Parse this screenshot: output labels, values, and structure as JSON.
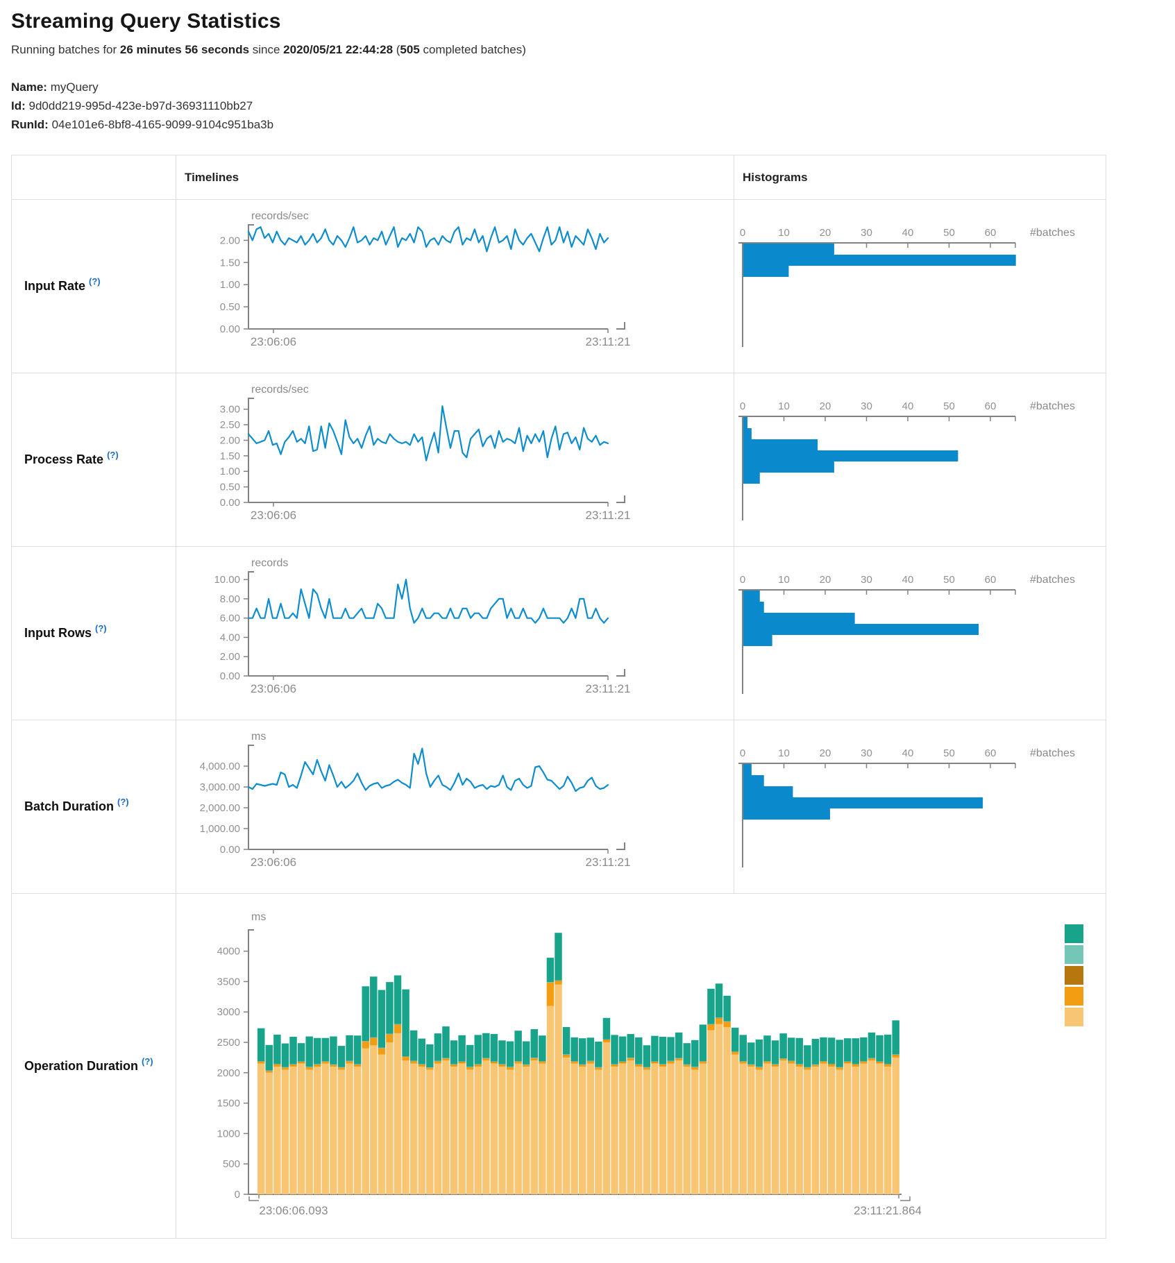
{
  "page": {
    "title": "Streaming Query Statistics",
    "subtitle_prefix": "Running batches for ",
    "duration": "26 minutes 56 seconds",
    "since_text": " since ",
    "start_time": "2020/05/21 22:44:28",
    "paren_open": " (",
    "completed_batches": "505",
    "batches_suffix": " completed batches)",
    "name_label": "Name:",
    "name": "myQuery",
    "id_label": "Id:",
    "id": "9d0dd219-995d-423e-b97d-36931110bb27",
    "runid_label": "RunId:",
    "runid": "04e101e6-8bf8-4165-9099-9104c951ba3b"
  },
  "table": {
    "timelines_header": "Timelines",
    "histograms_header": "Histograms"
  },
  "colors": {
    "line": "#0d8cce",
    "histogram_bar": "#0a89cc",
    "help": "#1b6ec2"
  },
  "rows": [
    {
      "label": "Input Rate",
      "help": "(?)"
    },
    {
      "label": "Process Rate",
      "help": "(?)"
    },
    {
      "label": "Input Rows",
      "help": "(?)"
    },
    {
      "label": "Batch Duration",
      "help": "(?)"
    },
    {
      "label": "Operation Duration",
      "help": "(?)"
    }
  ],
  "chart_data": [
    {
      "type": "line",
      "title": "Input Rate timeline",
      "unit": "records/sec",
      "x_start_label": "23:06:06",
      "x_end_label": "23:11:21",
      "ylim": [
        0,
        2.35
      ],
      "yticks": [
        0,
        0.5,
        1,
        1.5,
        2
      ],
      "ytick_labels": [
        "0.00",
        "0.50",
        "1.00",
        "1.50",
        "2.00"
      ],
      "values": [
        2.2,
        2.0,
        2.25,
        2.3,
        2.05,
        2.15,
        1.95,
        2.2,
        2.0,
        1.9,
        2.05,
        2.0,
        1.95,
        2.1,
        1.9,
        2.0,
        2.15,
        1.95,
        2.05,
        2.25,
        2.0,
        1.9,
        2.1,
        2.0,
        1.85,
        2.05,
        2.3,
        1.95,
        2.0,
        2.1,
        1.9,
        2.05,
        2.0,
        2.2,
        1.9,
        2.1,
        2.3,
        1.85,
        2.05,
        2.0,
        2.15,
        1.95,
        2.3,
        2.2,
        1.85,
        2.0,
        2.05,
        1.9,
        2.1,
        2.0,
        1.95,
        2.2,
        2.3,
        1.9,
        2.05,
        2.0,
        2.25,
        1.95,
        2.1,
        1.75,
        2.05,
        2.3,
        1.95,
        2.0,
        2.1,
        1.8,
        2.25,
        2.0,
        1.9,
        2.05,
        2.15,
        1.95,
        1.75,
        2.05,
        2.3,
        1.9,
        2.0,
        2.3,
        1.95,
        2.2,
        1.85,
        2.1,
        2.0,
        1.9,
        2.25,
        2.05,
        1.8,
        2.15,
        1.95,
        2.05
      ]
    },
    {
      "type": "bar",
      "title": "Input Rate histogram",
      "unit": "#batches",
      "xticks": [
        0,
        10,
        20,
        30,
        40,
        50,
        60
      ],
      "values": [
        22,
        66,
        11
      ]
    },
    {
      "type": "line",
      "title": "Process Rate timeline",
      "unit": "records/sec",
      "x_start_label": "23:06:06",
      "x_end_label": "23:11:21",
      "ylim": [
        0,
        3.35
      ],
      "yticks": [
        0,
        0.5,
        1,
        1.5,
        2,
        2.5,
        3
      ],
      "ytick_labels": [
        "0.00",
        "0.50",
        "1.00",
        "1.50",
        "2.00",
        "2.50",
        "3.00"
      ],
      "values": [
        2.2,
        2.05,
        1.9,
        1.95,
        2.0,
        2.3,
        1.85,
        1.9,
        1.55,
        1.95,
        2.1,
        2.3,
        1.95,
        2.05,
        1.9,
        2.45,
        1.65,
        1.7,
        2.45,
        1.75,
        2.55,
        2.3,
        1.95,
        1.55,
        2.65,
        2.1,
        1.9,
        2.05,
        1.75,
        2.15,
        2.45,
        1.85,
        2.05,
        1.95,
        1.9,
        2.2,
        2.05,
        1.95,
        1.9,
        1.95,
        1.85,
        2.2,
        1.95,
        2.1,
        1.35,
        1.85,
        2.25,
        1.6,
        3.1,
        2.4,
        1.75,
        2.3,
        2.3,
        1.6,
        1.45,
        2.05,
        2.2,
        2.35,
        1.8,
        2.05,
        2.15,
        1.75,
        2.3,
        1.95,
        2.05,
        2.0,
        1.9,
        2.4,
        1.65,
        2.15,
        1.9,
        2.2,
        1.95,
        2.3,
        1.45,
        2.05,
        2.45,
        1.7,
        2.2,
        2.25,
        1.9,
        2.1,
        1.7,
        2.4,
        2.05,
        1.95,
        2.15,
        1.85,
        1.95,
        1.9
      ]
    },
    {
      "type": "bar",
      "title": "Process Rate histogram",
      "unit": "#batches",
      "xticks": [
        0,
        10,
        20,
        30,
        40,
        50,
        60
      ],
      "values": [
        1,
        2,
        18,
        52,
        22,
        4
      ]
    },
    {
      "type": "line",
      "title": "Input Rows timeline",
      "unit": "records",
      "x_start_label": "23:06:06",
      "x_end_label": "23:11:21",
      "ylim": [
        0,
        10.8
      ],
      "yticks": [
        0,
        2,
        4,
        6,
        8,
        10
      ],
      "ytick_labels": [
        "0.00",
        "2.00",
        "4.00",
        "6.00",
        "8.00",
        "10.00"
      ],
      "values": [
        6,
        6,
        7,
        6,
        6,
        8,
        6,
        6,
        7.5,
        6,
        6,
        6.5,
        6,
        9,
        7.5,
        6,
        9,
        8.5,
        7,
        6,
        8,
        6,
        6,
        6,
        7,
        6,
        6,
        6.5,
        7,
        6,
        6,
        6,
        7.5,
        7,
        6,
        6,
        6,
        9.5,
        8,
        10,
        7,
        5.5,
        6,
        7,
        6,
        6,
        6.5,
        6.5,
        6,
        6,
        7,
        6,
        6,
        7,
        7,
        6,
        6.5,
        6.5,
        6,
        6,
        7,
        7.5,
        8,
        8,
        6,
        7,
        6,
        6,
        7,
        6,
        6,
        5.5,
        6,
        7,
        6,
        6,
        6,
        6,
        5.5,
        6,
        7,
        6,
        8,
        8,
        6,
        6,
        7,
        6,
        5.5,
        6
      ]
    },
    {
      "type": "bar",
      "title": "Input Rows histogram",
      "unit": "#batches",
      "xticks": [
        0,
        10,
        20,
        30,
        40,
        50,
        60
      ],
      "values": [
        4,
        5,
        27,
        57,
        7
      ]
    },
    {
      "type": "line",
      "title": "Batch Duration timeline",
      "unit": "ms",
      "x_start_label": "23:06:06",
      "x_end_label": "23:11:21",
      "ylim": [
        0,
        5000
      ],
      "yticks": [
        0,
        1000,
        2000,
        3000,
        4000
      ],
      "ytick_labels": [
        "0.00",
        "1,000.00",
        "2,000.00",
        "3,000.00",
        "4,000.00"
      ],
      "values": [
        3000,
        2900,
        3150,
        3100,
        3050,
        3100,
        3150,
        3100,
        3700,
        3600,
        3000,
        3100,
        2950,
        3550,
        4200,
        3900,
        3600,
        4300,
        3750,
        3300,
        4050,
        3550,
        3000,
        3250,
        2950,
        3100,
        3300,
        3650,
        3200,
        2850,
        3050,
        3150,
        3200,
        2950,
        3050,
        3100,
        3250,
        3350,
        3200,
        3100,
        2950,
        4600,
        4100,
        4850,
        3650,
        3000,
        3300,
        3550,
        3100,
        3000,
        2850,
        3200,
        3650,
        3100,
        3400,
        3250,
        2950,
        3050,
        3100,
        2900,
        3050,
        3000,
        3100,
        3550,
        3000,
        2850,
        3300,
        3400,
        3100,
        2950,
        3050,
        3950,
        4000,
        3700,
        3350,
        3300,
        3100,
        2900,
        3050,
        3500,
        3200,
        2800,
        2950,
        3000,
        3300,
        3450,
        3050,
        2900,
        2950,
        3100
      ]
    },
    {
      "type": "bar",
      "title": "Batch Duration histogram",
      "unit": "#batches",
      "xticks": [
        0,
        10,
        20,
        30,
        40,
        50,
        60
      ],
      "values": [
        2,
        5,
        12,
        58,
        21
      ]
    },
    {
      "type": "stacked-bar",
      "title": "Operation Duration timeline",
      "unit": "ms",
      "x_start_label": "23:06:06.093",
      "x_end_label": "23:11:21.864",
      "ylim": [
        0,
        4350
      ],
      "yticks": [
        0,
        500,
        1000,
        1500,
        2000,
        2500,
        3000,
        3500,
        4000
      ],
      "ytick_labels": [
        "0",
        "500",
        "1000",
        "1500",
        "2000",
        "2500",
        "3000",
        "3500",
        "4000"
      ],
      "legend_colors": [
        "#18a38b",
        "#74c7b6",
        "#b5770e",
        "#f39d12",
        "#f8c573"
      ],
      "series": [
        {
          "color": "#f8c573",
          "values": [
            2150,
            2000,
            2100,
            2050,
            2100,
            2150,
            2050,
            2100,
            2150,
            2100,
            2050,
            2150,
            2100,
            2400,
            2450,
            2300,
            2500,
            2650,
            2200,
            2150,
            2100,
            2050,
            2150,
            2200,
            2100,
            2150,
            2050,
            2100,
            2200,
            2150,
            2100,
            2050,
            2150,
            2100,
            2200,
            2150,
            3100,
            3450,
            2250,
            2150,
            2100,
            2150,
            2050,
            2500,
            2100,
            2150,
            2200,
            2100,
            2050,
            2150,
            2100,
            2150,
            2200,
            2100,
            2050,
            2150,
            2700,
            2800,
            2750,
            2300,
            2150,
            2100,
            2050,
            2150,
            2100,
            2200,
            2150,
            2100,
            2050,
            2100,
            2150,
            2100,
            2050,
            2150,
            2100,
            2150,
            2200,
            2150,
            2100,
            2250
          ]
        },
        {
          "color": "#f39d12",
          "values": [
            30,
            25,
            35,
            30,
            30,
            25,
            35,
            30,
            30,
            25,
            30,
            35,
            30,
            110,
            120,
            100,
            130,
            140,
            60,
            35,
            30,
            25,
            35,
            30,
            30,
            25,
            35,
            30,
            30,
            25,
            30,
            35,
            30,
            25,
            35,
            30,
            380,
            60,
            40,
            30,
            25,
            35,
            30,
            40,
            30,
            25,
            35,
            30,
            30,
            25,
            30,
            35,
            30,
            25,
            35,
            30,
            90,
            95,
            85,
            40,
            30,
            25,
            35,
            30,
            30,
            25,
            35,
            30,
            30,
            25,
            30,
            35,
            30,
            25,
            35,
            30,
            30,
            25,
            35,
            40
          ]
        },
        {
          "color": "#b5770e",
          "values": [
            6,
            6,
            6,
            6,
            6,
            6,
            6,
            6,
            6,
            6,
            6,
            6,
            6,
            6,
            6,
            6,
            6,
            6,
            6,
            6,
            6,
            6,
            6,
            6,
            6,
            6,
            6,
            6,
            6,
            6,
            6,
            6,
            6,
            6,
            6,
            6,
            6,
            6,
            6,
            6,
            6,
            6,
            6,
            6,
            6,
            6,
            6,
            6,
            6,
            6,
            6,
            6,
            6,
            6,
            6,
            6,
            6,
            6,
            6,
            6,
            6,
            6,
            6,
            6,
            6,
            6,
            6,
            6,
            6,
            6,
            6,
            6,
            6,
            6,
            6,
            6,
            6,
            6,
            6,
            6
          ]
        },
        {
          "color": "#74c7b6",
          "values": [
            6,
            6,
            6,
            6,
            6,
            6,
            6,
            6,
            6,
            6,
            6,
            6,
            6,
            6,
            6,
            6,
            6,
            6,
            6,
            6,
            6,
            6,
            6,
            6,
            6,
            6,
            6,
            6,
            6,
            6,
            6,
            6,
            6,
            6,
            6,
            6,
            6,
            6,
            6,
            6,
            6,
            6,
            6,
            6,
            6,
            6,
            6,
            6,
            6,
            6,
            6,
            6,
            6,
            6,
            6,
            6,
            6,
            6,
            6,
            6,
            6,
            6,
            6,
            6,
            6,
            6,
            6,
            6,
            6,
            6,
            6,
            6,
            6,
            6,
            6,
            6,
            6,
            6,
            6,
            6
          ]
        },
        {
          "color": "#18a38b",
          "values": [
            540,
            420,
            480,
            390,
            450,
            300,
            500,
            430,
            380,
            460,
            350,
            420,
            470,
            900,
            1000,
            950,
            850,
            800,
            1100,
            500,
            420,
            380,
            450,
            520,
            390,
            430,
            360,
            480,
            410,
            450,
            390,
            420,
            500,
            380,
            470,
            420,
            400,
            780,
            450,
            390,
            430,
            380,
            420,
            350,
            480,
            410,
            390,
            440,
            360,
            420,
            450,
            390,
            420,
            350,
            440,
            600,
            580,
            560,
            420,
            390,
            430,
            360,
            450,
            420,
            390,
            410,
            380,
            430,
            360,
            420,
            390,
            430,
            450,
            380,
            420,
            390,
            420,
            430,
            480,
            560
          ]
        }
      ]
    }
  ]
}
